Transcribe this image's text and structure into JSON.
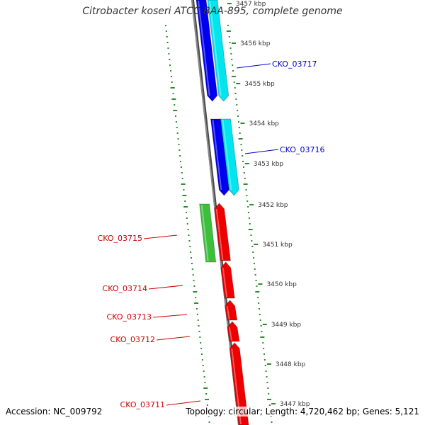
{
  "map": {
    "title": "Citrobacter koseri ATCC BAA-895, complete genome",
    "accession": "Accession: NC_009792",
    "info": "Topology: circular; Length: 4,720,462 bp; Genes: 5,121"
  },
  "colors": {
    "backbone": "#8c8c8c",
    "forward_cds": "#0000ee",
    "forward_rna": "#00e5ee",
    "reverse_cds": "#ee0000",
    "reverse_rna": "#3cc03c",
    "gc_ticks": "#2e8b2e",
    "forward_label": "#0000cc",
    "reverse_label": "#cc0000"
  },
  "scale": [
    {
      "label": "3457 kbp"
    },
    {
      "label": "3456 kbp"
    },
    {
      "label": "3455 kbp"
    },
    {
      "label": "3454 kbp"
    },
    {
      "label": "3453 kbp"
    },
    {
      "label": "3452 kbp"
    },
    {
      "label": "3451 kbp"
    },
    {
      "label": "3450 kbp"
    },
    {
      "label": "3449 kbp"
    },
    {
      "label": "3448 kbp"
    },
    {
      "label": "3447 kbp"
    }
  ],
  "features": [
    {
      "name": "CKO_03717",
      "strand": "forward",
      "track": "rna"
    },
    {
      "name": "CKO_03717",
      "strand": "forward",
      "track": "cds"
    },
    {
      "name": "CKO_03716",
      "strand": "forward",
      "track": "cds"
    },
    {
      "name": "CKO_03716",
      "strand": "forward",
      "track": "rna"
    },
    {
      "name": "CKO_03715",
      "strand": "reverse",
      "track": "rna"
    },
    {
      "name": "CKO_03715",
      "strand": "reverse",
      "track": "cds"
    },
    {
      "name": "CKO_03714",
      "strand": "reverse",
      "track": "cds"
    },
    {
      "name": "CKO_03713",
      "strand": "reverse",
      "track": "cds"
    },
    {
      "name": "CKO_03712",
      "strand": "reverse",
      "track": "cds"
    },
    {
      "name": "CKO_03711",
      "strand": "reverse",
      "track": "cds"
    }
  ],
  "labels": [
    {
      "text": "CKO_03717",
      "strand": "forward"
    },
    {
      "text": "CKO_03716",
      "strand": "forward"
    },
    {
      "text": "CKO_03715",
      "strand": "reverse"
    },
    {
      "text": "CKO_03714",
      "strand": "reverse"
    },
    {
      "text": "CKO_03713",
      "strand": "reverse"
    },
    {
      "text": "CKO_03712",
      "strand": "reverse"
    },
    {
      "text": "CKO_03711",
      "strand": "reverse"
    }
  ]
}
